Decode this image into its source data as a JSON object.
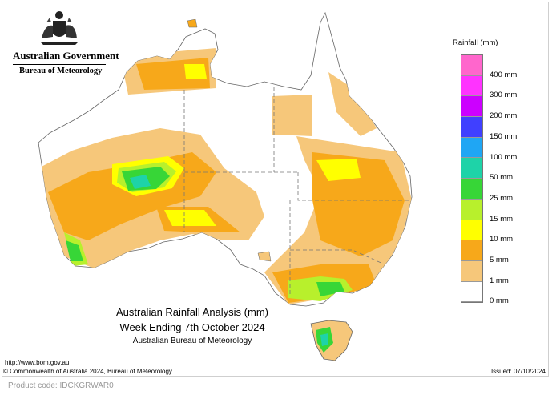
{
  "header": {
    "government": "Australian Government",
    "bureau": "Bureau of Meteorology"
  },
  "legend": {
    "title": "Rainfall (mm)",
    "bins": [
      {
        "label": "400 mm",
        "color": "#ff66cc"
      },
      {
        "label": "300 mm",
        "color": "#ff33ff"
      },
      {
        "label": "200 mm",
        "color": "#cc00ff"
      },
      {
        "label": "150 mm",
        "color": "#4040ff"
      },
      {
        "label": "100 mm",
        "color": "#1fa6f4"
      },
      {
        "label": "50 mm",
        "color": "#1ed3a8"
      },
      {
        "label": "25 mm",
        "color": "#37d637"
      },
      {
        "label": "15 mm",
        "color": "#b8f02c"
      },
      {
        "label": "10 mm",
        "color": "#ffff00"
      },
      {
        "label": "5 mm",
        "color": "#f7a81a"
      },
      {
        "label": "1 mm",
        "color": "#f6c77a"
      },
      {
        "label": "0 mm",
        "color": "#ffffff"
      }
    ]
  },
  "map": {
    "title_line1": "Australian Rainfall Analysis (mm)",
    "title_line2": "Week Ending 7th October 2024",
    "title_line3": "Australian Bureau of Meteorology"
  },
  "footer": {
    "url": "http://www.bom.gov.au",
    "copyright": "© Commonwealth of Australia 2024, Bureau of Meteorology",
    "issued": "Issued: 07/10/2024",
    "product_code": "Product code: IDCKGRWAR0"
  }
}
